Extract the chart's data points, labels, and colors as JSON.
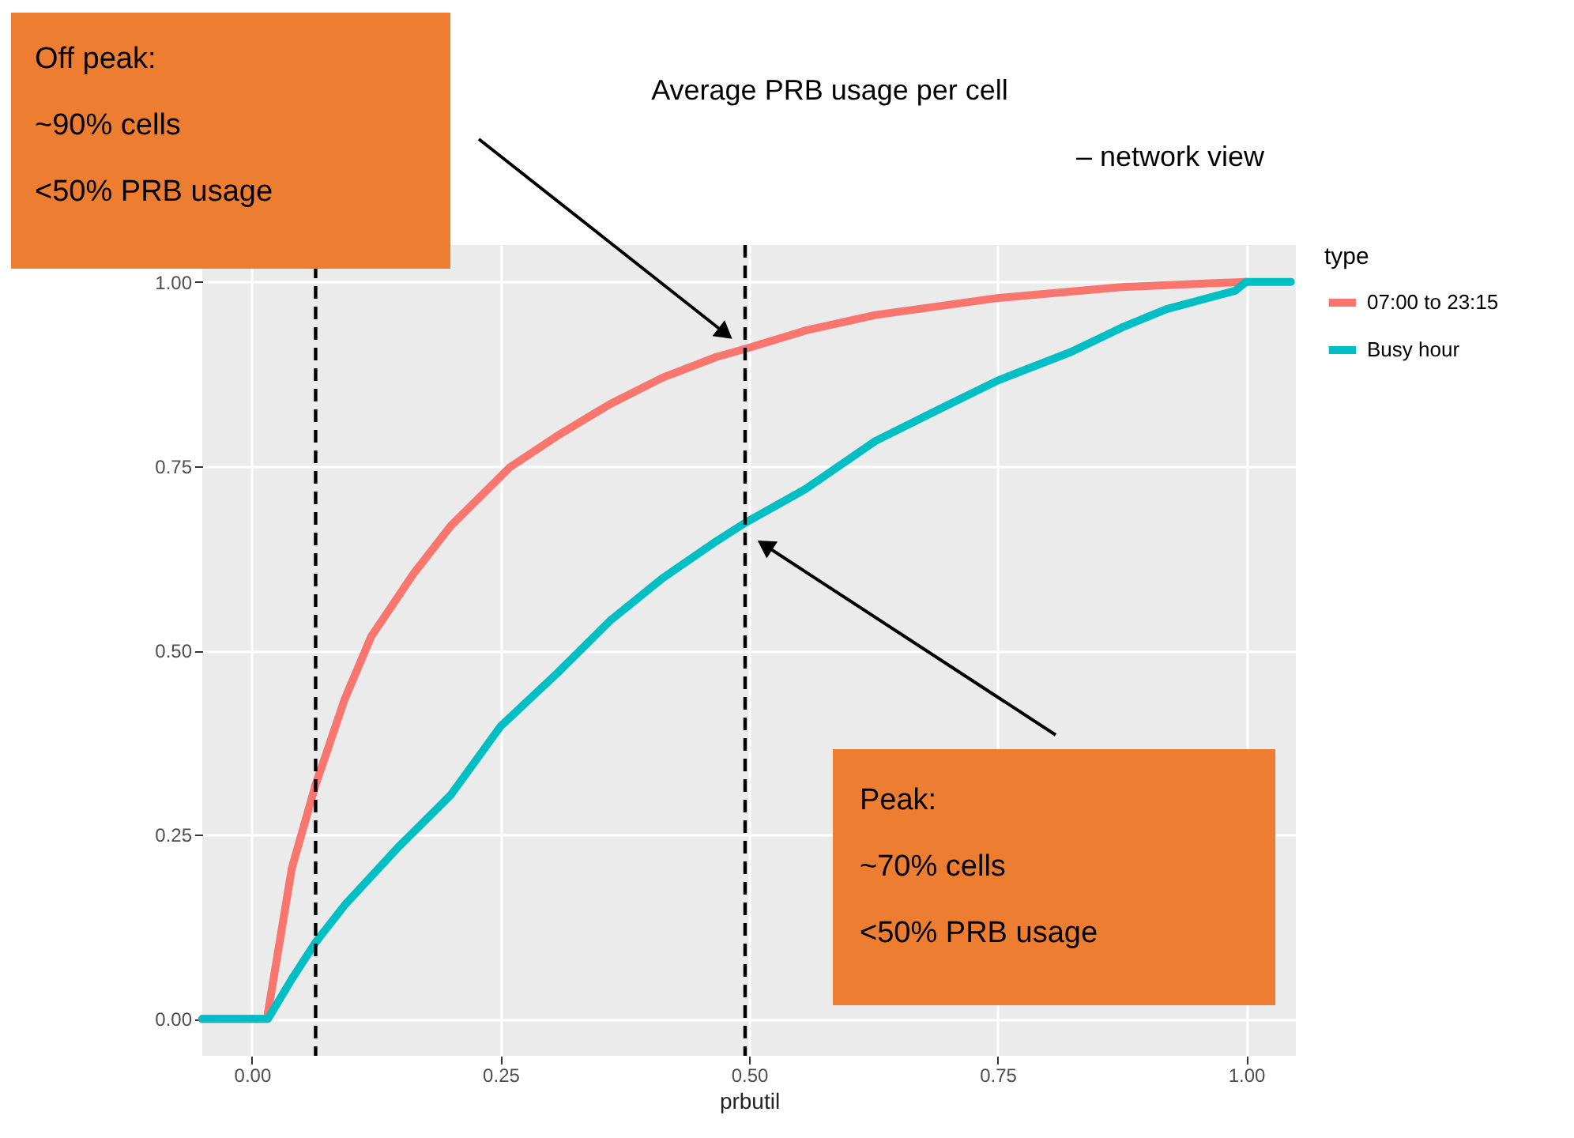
{
  "chart_data": {
    "type": "line",
    "title": "Average PRB usage per cell",
    "subtitle": "– network view",
    "xlabel": "prbutil",
    "legend_title": "type",
    "legend": "right",
    "grid": true,
    "line_style": "solid",
    "marker": "none",
    "xlim": [
      -0.05,
      1.05
    ],
    "ylim": [
      -0.05,
      1.05
    ],
    "xticks": [
      {
        "value": 0,
        "label": "0.00"
      },
      {
        "value": 0.25,
        "label": "0.25"
      },
      {
        "value": 0.5,
        "label": "0.50"
      },
      {
        "value": 0.75,
        "label": "0.75"
      },
      {
        "value": 1,
        "label": "1.00"
      }
    ],
    "yticks": [
      {
        "value": 0,
        "label": "0.00"
      },
      {
        "value": 0.25,
        "label": "0.25"
      },
      {
        "value": 0.5,
        "label": "0.50"
      },
      {
        "value": 0.75,
        "label": "0.75"
      },
      {
        "value": 1,
        "label": "1.00"
      }
    ],
    "series": [
      {
        "name": "07:00 to 23:15",
        "color": "#f8766d",
        "x": [
          -0.05,
          0.013,
          0.015,
          0.04,
          0.064,
          0.075,
          0.093,
          0.12,
          0.163,
          0.2,
          0.259,
          0.307,
          0.36,
          0.413,
          0.467,
          0.496,
          0.557,
          0.627,
          0.75,
          0.875,
          1.0
        ],
        "values": [
          0,
          0,
          0,
          0.204,
          0.318,
          0.361,
          0.433,
          0.519,
          0.605,
          0.669,
          0.748,
          0.791,
          0.834,
          0.87,
          0.898,
          0.909,
          0.934,
          0.955,
          0.978,
          0.993,
          1.0
        ]
      },
      {
        "name": "Busy hour",
        "color": "#00bfc4",
        "x": [
          -0.05,
          0.016,
          0.04,
          0.064,
          0.093,
          0.147,
          0.2,
          0.25,
          0.307,
          0.36,
          0.413,
          0.467,
          0.496,
          0.557,
          0.627,
          0.691,
          0.75,
          0.824,
          0.875,
          0.92,
          0.989,
          1.0,
          1.045
        ],
        "values": [
          0,
          0,
          0.054,
          0.104,
          0.154,
          0.233,
          0.304,
          0.397,
          0.469,
          0.54,
          0.598,
          0.648,
          0.673,
          0.719,
          0.784,
          0.827,
          0.866,
          0.905,
          0.938,
          0.963,
          0.988,
          1.0,
          1.0
        ]
      }
    ],
    "ref_lines": [
      {
        "axis": "x",
        "value": 0.064,
        "color": "#000000",
        "line_style": "dashed"
      },
      {
        "axis": "x",
        "value": 0.496,
        "color": "#000000",
        "line_style": "dashed"
      }
    ],
    "annotations": [
      "Off peak:\n~90% cells\n<50% PRB usage",
      "Peak:\n~70% cells\n<50% PRB usage"
    ]
  }
}
